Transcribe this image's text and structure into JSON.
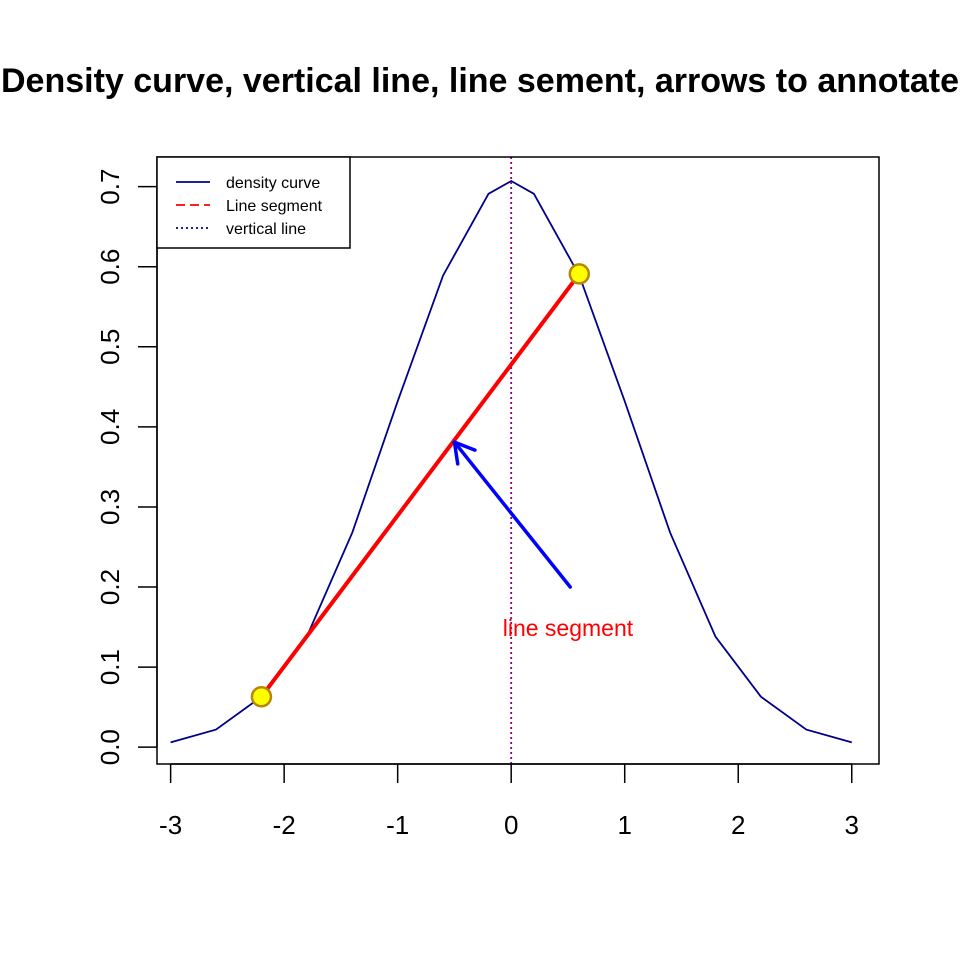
{
  "chart_data": {
    "type": "line",
    "title": "Density curve, vertical line, line sement, arrows to annotate",
    "xlabel": "",
    "ylabel": "",
    "xlim": [
      -3.12,
      3.24
    ],
    "ylim": [
      -0.021,
      0.737
    ],
    "x_ticks": [
      -3,
      -2,
      -1,
      0,
      1,
      2,
      3
    ],
    "x_tick_labels": [
      "-3",
      "-2",
      "-1",
      "0",
      "1",
      "2",
      "3"
    ],
    "y_ticks": [
      0.0,
      0.1,
      0.2,
      0.3,
      0.4,
      0.5,
      0.6,
      0.7
    ],
    "y_tick_labels": [
      "0.0",
      "0.1",
      "0.2",
      "0.3",
      "0.4",
      "0.5",
      "0.6",
      "0.7"
    ],
    "grid": false,
    "series": [
      {
        "name": "density curve",
        "color": "#00008B",
        "x": [
          -3.0,
          -2.6,
          -2.2,
          -1.8,
          -1.4,
          -1.0,
          -0.6,
          -0.2,
          0.0,
          0.2,
          0.6,
          1.0,
          1.4,
          1.8,
          2.2,
          2.6,
          3.0
        ],
        "y": [
          0.006,
          0.022,
          0.063,
          0.138,
          0.268,
          0.432,
          0.589,
          0.691,
          0.707,
          0.691,
          0.589,
          0.432,
          0.268,
          0.138,
          0.063,
          0.022,
          0.006
        ]
      }
    ],
    "vertical_line": {
      "x": 0,
      "color": "#8B008B",
      "style": "dotted"
    },
    "segment": {
      "x0": -2.2,
      "y0": 0.063,
      "x1": 0.6,
      "y1": 0.591,
      "color": "#FF0000"
    },
    "segment_endpoints": [
      {
        "x": -2.2,
        "y": 0.063
      },
      {
        "x": 0.6,
        "y": 0.591
      }
    ],
    "endpoint_fill": "#FFFF00",
    "endpoint_stroke": "#B8860B",
    "arrow": {
      "x0": 0.52,
      "y0": 0.2,
      "x1": -0.5,
      "y1": 0.381,
      "color": "#0000FF"
    },
    "annotation": {
      "text": "line segment",
      "x": 0.5,
      "y": 0.149,
      "color": "#FF0000"
    },
    "legend": {
      "position": "top-left",
      "entries": [
        {
          "label": "density curve",
          "color": "#00008B",
          "style": "solid"
        },
        {
          "label": "Line segment",
          "color": "#FF0000",
          "style": "dashed"
        },
        {
          "label": "vertical line",
          "color": "#00008B",
          "style": "dotted"
        }
      ]
    }
  }
}
